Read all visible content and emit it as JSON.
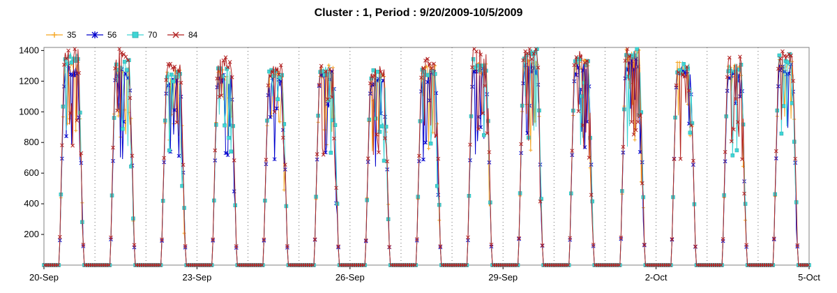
{
  "chart_data": {
    "type": "line",
    "title": "Cluster : 1, Period : 9/20/2009-10/5/2009",
    "xlabel": "",
    "ylabel": "",
    "xlim": [
      0,
      15
    ],
    "ylim": [
      0,
      1420
    ],
    "x_tick_labels": [
      "20-Sep",
      "23-Sep",
      "26-Sep",
      "29-Sep",
      "2-Oct",
      "5-Oct"
    ],
    "y_ticks": [
      200,
      400,
      600,
      800,
      1000,
      1200,
      1400
    ],
    "grid": "vertical dotted daily lines",
    "legend_position": "top-left",
    "series": [
      {
        "name": "35",
        "color": "#f5a623",
        "marker": "plus"
      },
      {
        "name": "56",
        "color": "#0000cc",
        "marker": "star"
      },
      {
        "name": "70",
        "color": "#3fd5d5",
        "marker": "square"
      },
      {
        "name": "84",
        "color": "#b22222",
        "marker": "x"
      }
    ],
    "daily_peaks": [
      [
        1300,
        1280,
        1360,
        1400
      ],
      [
        1300,
        1260,
        1320,
        1390
      ],
      [
        1250,
        1200,
        1240,
        1290
      ],
      [
        1250,
        1220,
        1260,
        1330
      ],
      [
        1240,
        1200,
        1250,
        1280
      ],
      [
        1280,
        1250,
        1290,
        1280
      ],
      [
        1250,
        1200,
        1260,
        1280
      ],
      [
        1280,
        1240,
        1270,
        1330
      ],
      [
        1300,
        1260,
        1320,
        1400
      ],
      [
        1330,
        1300,
        1390,
        1400
      ],
      [
        1330,
        1290,
        1340,
        1370
      ],
      [
        1380,
        1320,
        1400,
        1400
      ],
      [
        1300,
        1270,
        1300,
        1280
      ],
      [
        1280,
        1250,
        1300,
        1350
      ],
      [
        1320,
        1290,
        1350,
        1370
      ]
    ],
    "sunrise_frac": 0.3,
    "sunset_frac": 0.78,
    "night_value": 0
  }
}
